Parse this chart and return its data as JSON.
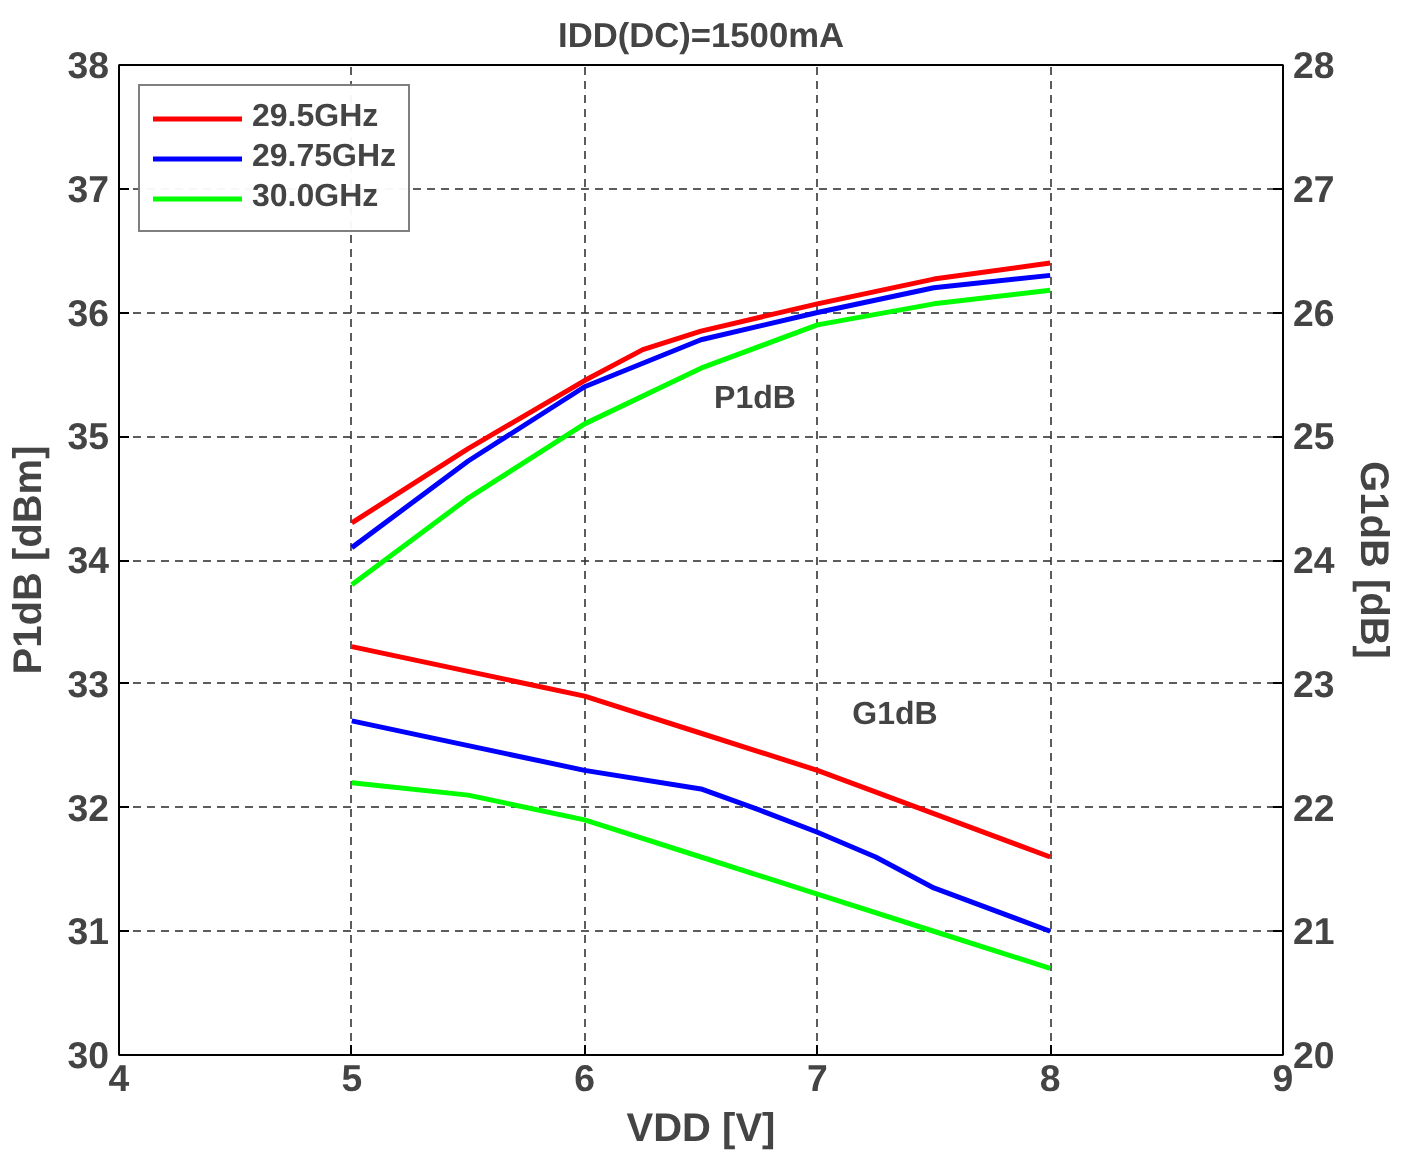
{
  "chart_data": {
    "type": "line",
    "title": "IDD(DC)=1500mA",
    "xlabel": "VDD [V]",
    "ylabel": "P1dB [dBm]",
    "y2label": "G1dB [dB]",
    "xlim": [
      4,
      9
    ],
    "xticks": [
      4,
      5,
      6,
      7,
      8,
      9
    ],
    "ylim": [
      30,
      38
    ],
    "yticks": [
      30,
      31,
      32,
      33,
      34,
      35,
      36,
      37,
      38
    ],
    "y2lim": [
      20,
      28
    ],
    "y2ticks": [
      20,
      21,
      22,
      23,
      24,
      25,
      26,
      27,
      28
    ],
    "grid": true,
    "legend": "top left",
    "line_style": "solid",
    "marker": "none",
    "annotations": [
      "P1dB",
      "G1dB"
    ],
    "series": [
      {
        "name": "29.5GHz",
        "color": "#ff0000",
        "x": [
          5,
          5.5,
          6,
          6.25,
          6.5,
          7,
          7.5,
          8
        ],
        "values": [
          34.3,
          34.9,
          35.45,
          35.7,
          35.85,
          36.07,
          36.27,
          36.4
        ]
      },
      {
        "name": "29.75GHz",
        "color": "#0000ff",
        "x": [
          5,
          5.5,
          6,
          6.5,
          7,
          7.5,
          8
        ],
        "values": [
          34.1,
          34.8,
          35.4,
          35.78,
          36.0,
          36.2,
          36.3
        ]
      },
      {
        "name": "30.0GHz",
        "color": "#00ff00",
        "x": [
          5,
          5.5,
          6,
          6.5,
          7,
          7.5,
          8
        ],
        "values": [
          33.8,
          34.5,
          35.1,
          35.55,
          35.9,
          36.07,
          36.18
        ]
      },
      {
        "color": "#ff0000",
        "axis": "y2",
        "x": [
          5,
          5.5,
          6,
          6.5,
          7,
          7.5,
          8
        ],
        "values": [
          23.3,
          23.1,
          22.9,
          22.6,
          22.3,
          21.95,
          21.6
        ]
      },
      {
        "color": "#0000ff",
        "axis": "y2",
        "x": [
          5,
          5.5,
          6,
          6.5,
          6.75,
          7,
          7.25,
          7.5,
          8
        ],
        "values": [
          22.7,
          22.5,
          22.3,
          22.15,
          21.98,
          21.8,
          21.6,
          21.35,
          21.0
        ]
      },
      {
        "color": "#00ff00",
        "axis": "y2",
        "x": [
          5,
          5.5,
          6,
          6.5,
          7,
          7.5,
          8
        ],
        "values": [
          22.2,
          22.1,
          21.9,
          21.6,
          21.3,
          21.0,
          20.7
        ]
      }
    ]
  }
}
